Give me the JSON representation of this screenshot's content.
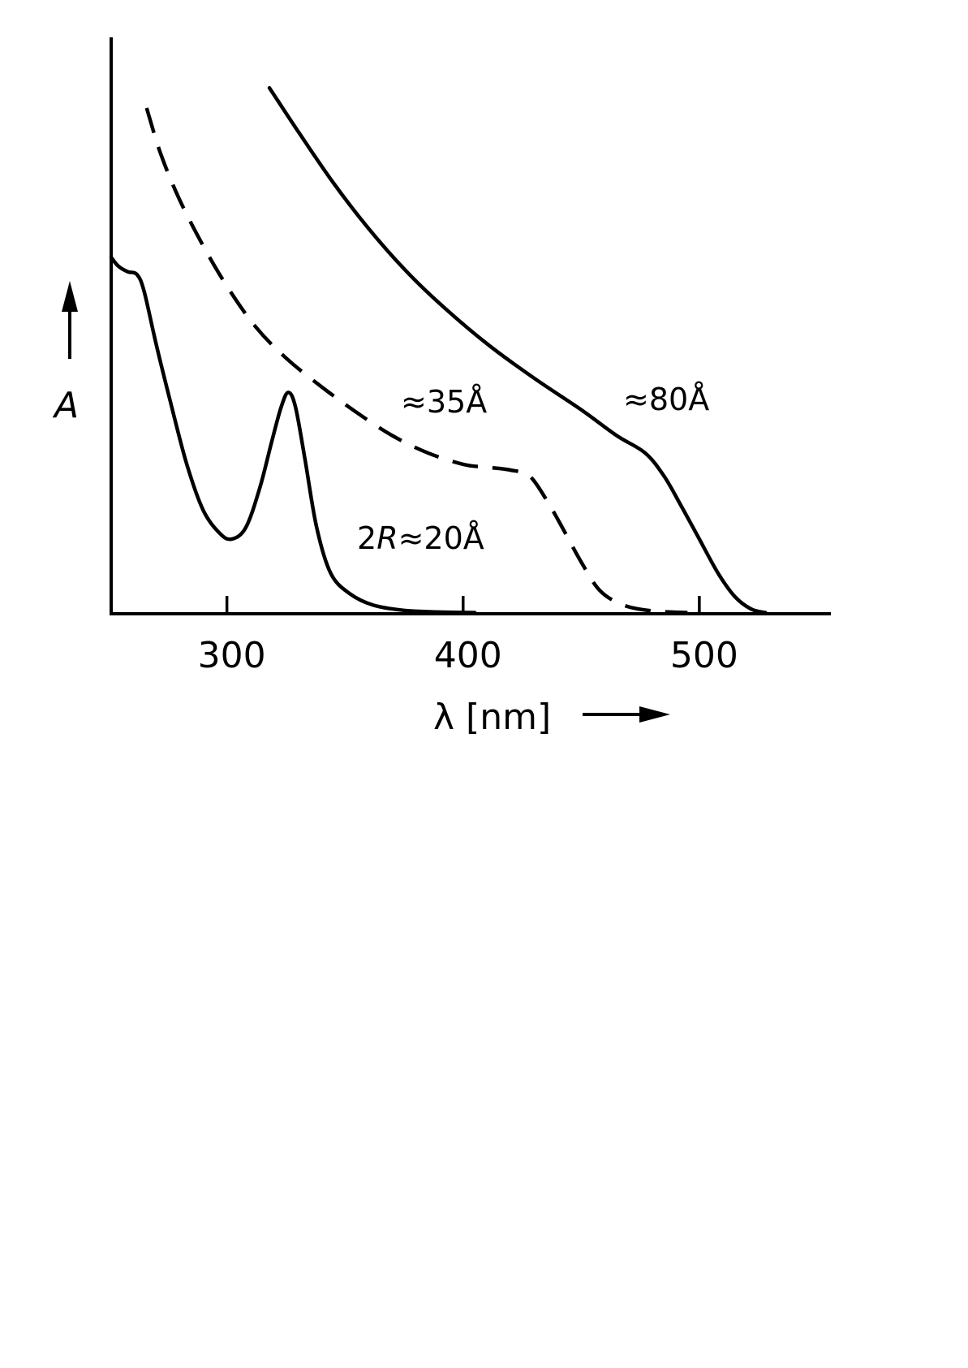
{
  "chart_data": {
    "type": "line",
    "title": "",
    "xlabel": "λ [nm]",
    "ylabel": "A",
    "xlim": [
      251,
      555
    ],
    "ylim": [
      0,
      1.0
    ],
    "x_ticks": [
      300,
      400,
      500
    ],
    "grid": false,
    "legend": "none",
    "series": [
      {
        "name": "2R≈20Å",
        "style": "solid",
        "points": [
          [
            251,
            0.62
          ],
          [
            254,
            0.605
          ],
          [
            258,
            0.595
          ],
          [
            262,
            0.59
          ],
          [
            265,
            0.56
          ],
          [
            270,
            0.47
          ],
          [
            276,
            0.37
          ],
          [
            283,
            0.26
          ],
          [
            290,
            0.18
          ],
          [
            297,
            0.14
          ],
          [
            302,
            0.13
          ],
          [
            308,
            0.15
          ],
          [
            314,
            0.22
          ],
          [
            319,
            0.3
          ],
          [
            323,
            0.36
          ],
          [
            326,
            0.385
          ],
          [
            329,
            0.36
          ],
          [
            333,
            0.27
          ],
          [
            338,
            0.15
          ],
          [
            344,
            0.07
          ],
          [
            352,
            0.035
          ],
          [
            362,
            0.015
          ],
          [
            375,
            0.006
          ],
          [
            390,
            0.003
          ],
          [
            405,
            0.002
          ]
        ]
      },
      {
        "name": "≈35Å",
        "style": "dashed",
        "points": [
          [
            266,
            0.88
          ],
          [
            272,
            0.8
          ],
          [
            280,
            0.72
          ],
          [
            290,
            0.64
          ],
          [
            300,
            0.57
          ],
          [
            312,
            0.5
          ],
          [
            325,
            0.445
          ],
          [
            340,
            0.395
          ],
          [
            355,
            0.35
          ],
          [
            370,
            0.31
          ],
          [
            385,
            0.28
          ],
          [
            400,
            0.26
          ],
          [
            410,
            0.255
          ],
          [
            420,
            0.25
          ],
          [
            428,
            0.24
          ],
          [
            435,
            0.2
          ],
          [
            442,
            0.15
          ],
          [
            450,
            0.09
          ],
          [
            458,
            0.04
          ],
          [
            468,
            0.015
          ],
          [
            480,
            0.005
          ],
          [
            495,
            0.002
          ]
        ]
      },
      {
        "name": "≈80Å",
        "style": "solid",
        "points": [
          [
            318,
            0.915
          ],
          [
            330,
            0.84
          ],
          [
            345,
            0.75
          ],
          [
            360,
            0.67
          ],
          [
            375,
            0.6
          ],
          [
            390,
            0.54
          ],
          [
            410,
            0.47
          ],
          [
            430,
            0.41
          ],
          [
            450,
            0.355
          ],
          [
            465,
            0.31
          ],
          [
            477,
            0.28
          ],
          [
            485,
            0.24
          ],
          [
            492,
            0.19
          ],
          [
            500,
            0.13
          ],
          [
            508,
            0.07
          ],
          [
            515,
            0.03
          ],
          [
            522,
            0.008
          ],
          [
            528,
            0.002
          ]
        ]
      }
    ],
    "annotations": {
      "label_20": "2R≈20Å",
      "label_20_prefix": "2",
      "label_20_italic": "R",
      "label_20_suffix": "≈20Å",
      "label_35": "≈35Å",
      "label_80": "≈80Å"
    }
  }
}
